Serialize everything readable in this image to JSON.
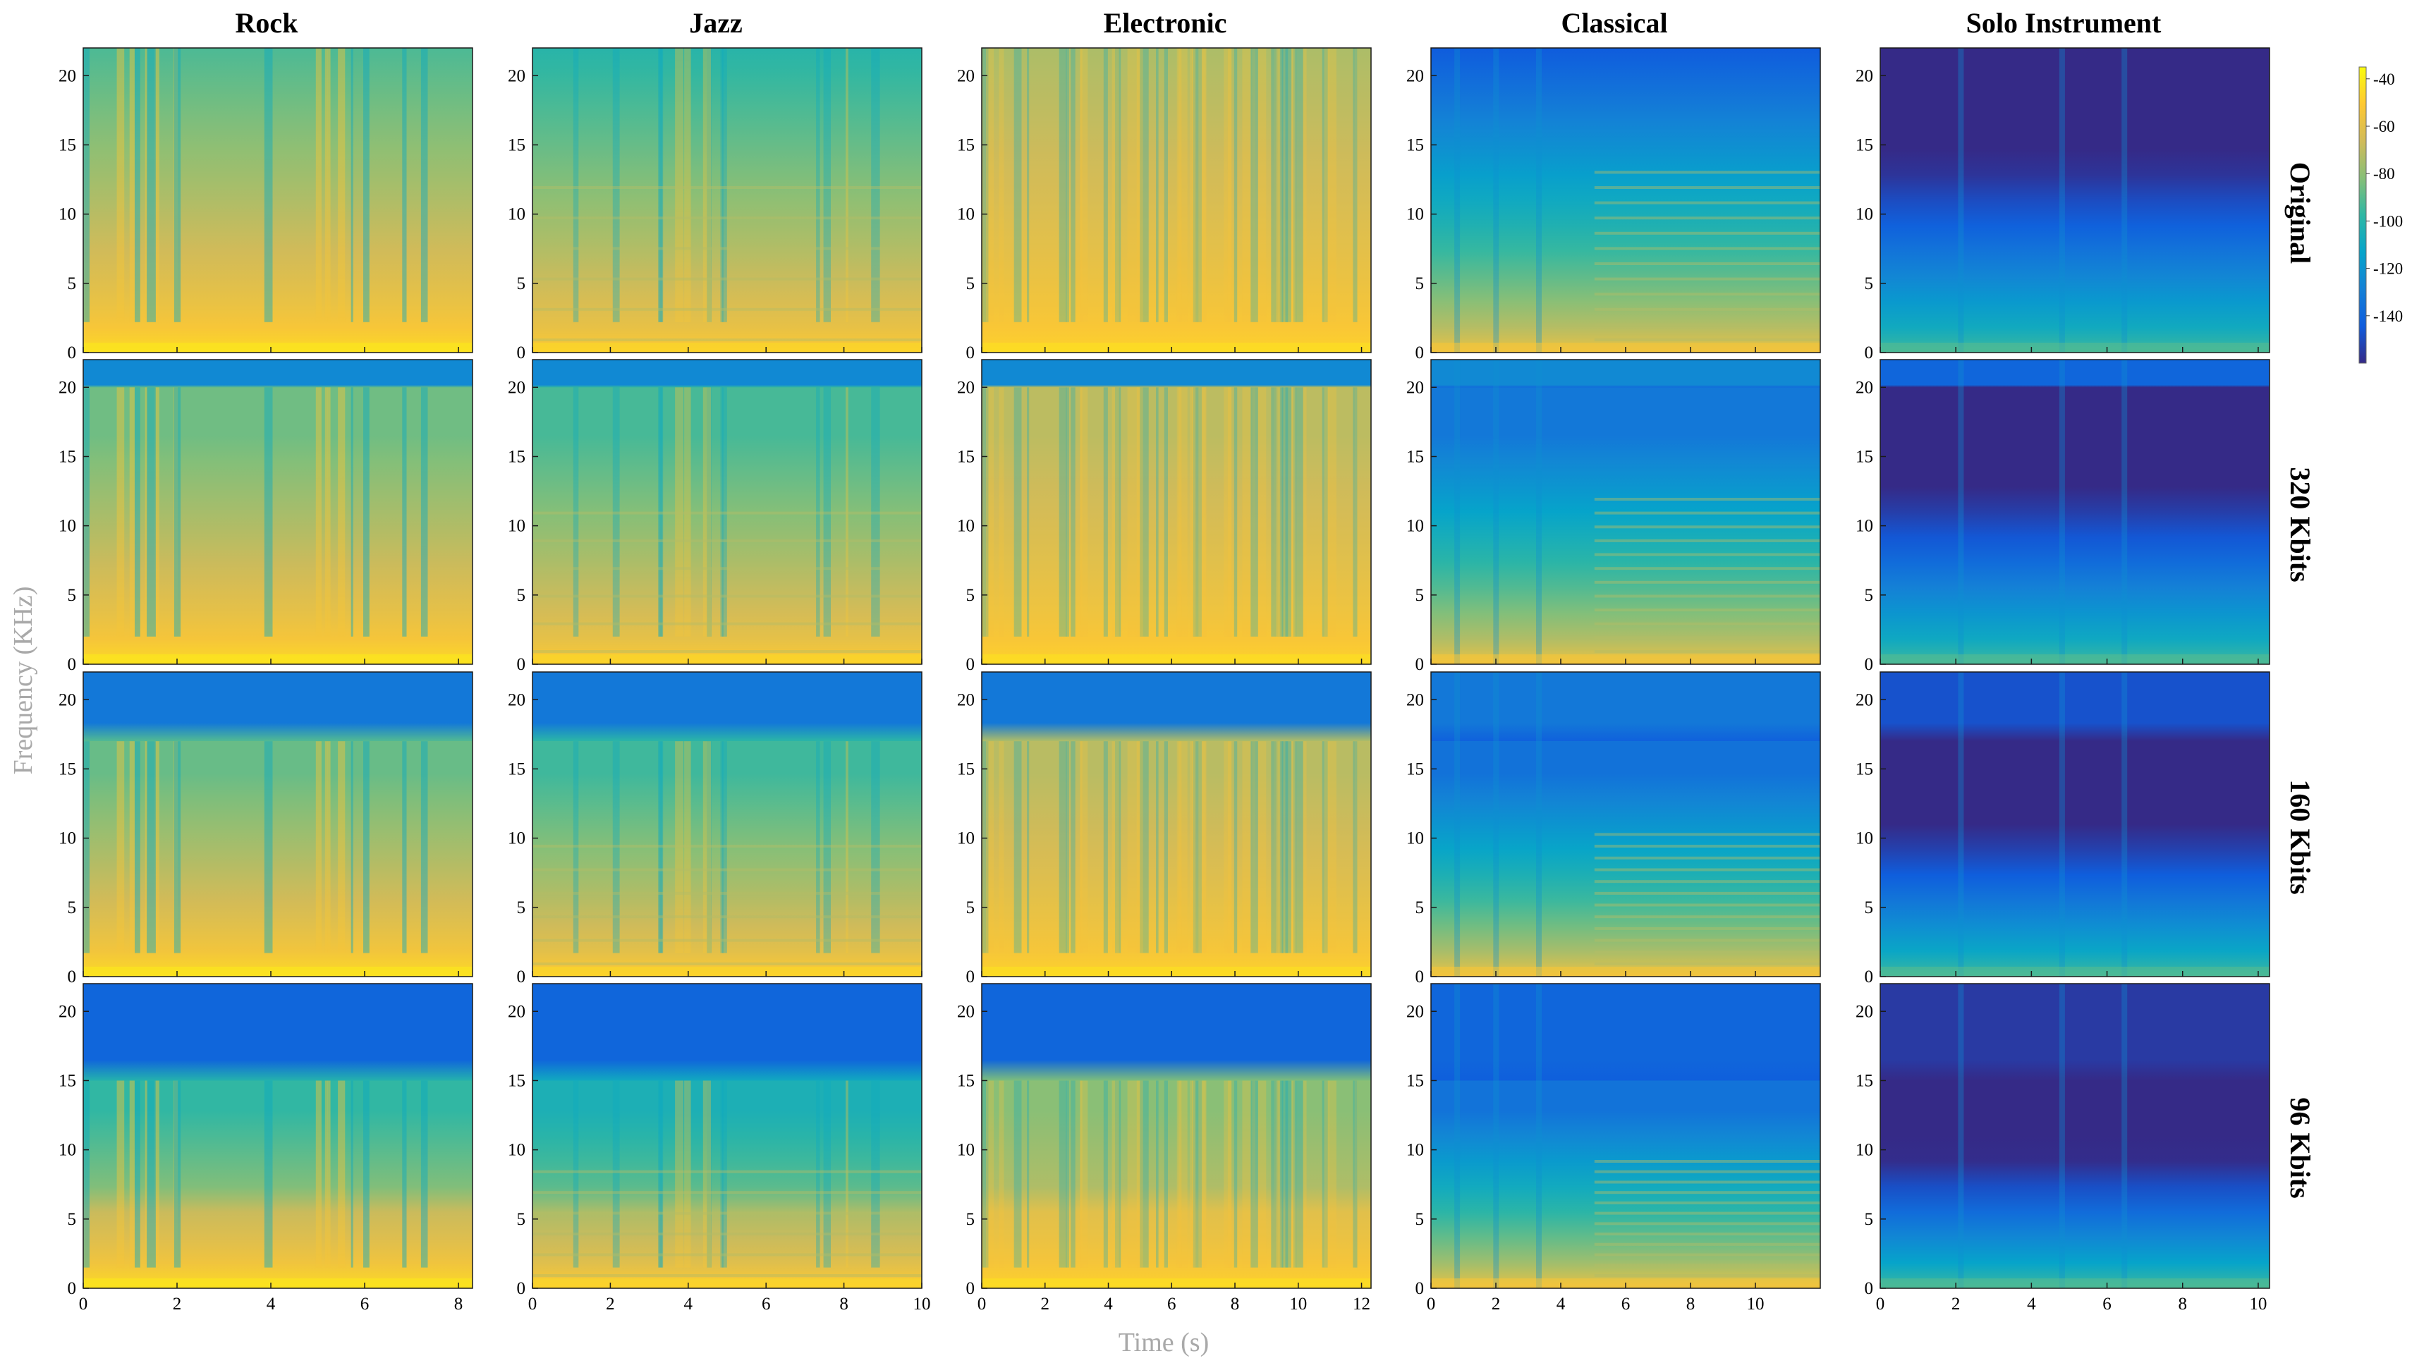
{
  "figure": {
    "columns": [
      "Rock",
      "Jazz",
      "Electronic",
      "Classical",
      "Solo Instrument"
    ],
    "rows": [
      "Original",
      "320 Kbits",
      "160 Kbits",
      "96 Kbits"
    ],
    "xlabel": "Time (s)",
    "ylabel": "Frequency (KHz)"
  },
  "chart_data": {
    "type": "heatmap",
    "colormap": "parula",
    "colorbar": {
      "ticks": [
        -40,
        -60,
        -80,
        -100,
        -120,
        -140
      ],
      "range_db": [
        -160,
        -35
      ]
    },
    "y_axis": {
      "ticks": [
        0,
        5,
        10,
        15,
        20
      ],
      "range_khz": [
        0,
        22
      ]
    },
    "panels_grid": {
      "columns": [
        {
          "genre": "Rock",
          "x_ticks": [
            0,
            2,
            4,
            6,
            8
          ],
          "x_range_s": [
            0,
            8.3
          ]
        },
        {
          "genre": "Jazz",
          "x_ticks": [
            0,
            2,
            4,
            6,
            8,
            10
          ],
          "x_range_s": [
            0,
            10
          ]
        },
        {
          "genre": "Electronic",
          "x_ticks": [
            0,
            2,
            4,
            6,
            8,
            10,
            12
          ],
          "x_range_s": [
            0,
            12.3
          ]
        },
        {
          "genre": "Classical",
          "x_ticks": [
            0,
            2,
            4,
            6,
            8,
            10
          ],
          "x_range_s": [
            0,
            12
          ]
        },
        {
          "genre": "Solo Instrument",
          "x_ticks": [
            0,
            2,
            4,
            6,
            8,
            10
          ],
          "x_range_s": [
            0,
            10.3
          ]
        }
      ],
      "rows": [
        {
          "bitrate": "Original",
          "cutoff_khz": 22
        },
        {
          "bitrate": "320 Kbits",
          "cutoff_khz": 20
        },
        {
          "bitrate": "160 Kbits",
          "cutoff_khz": 17
        },
        {
          "bitrate": "96 Kbits",
          "cutoff_khz": 15
        }
      ]
    },
    "colors": {
      "parula": [
        "#352a87",
        "#0f5cdd",
        "#1481d6",
        "#06a4ca",
        "#2eb7a4",
        "#87bf77",
        "#d1bb59",
        "#fec832",
        "#f9fb0e"
      ]
    }
  }
}
